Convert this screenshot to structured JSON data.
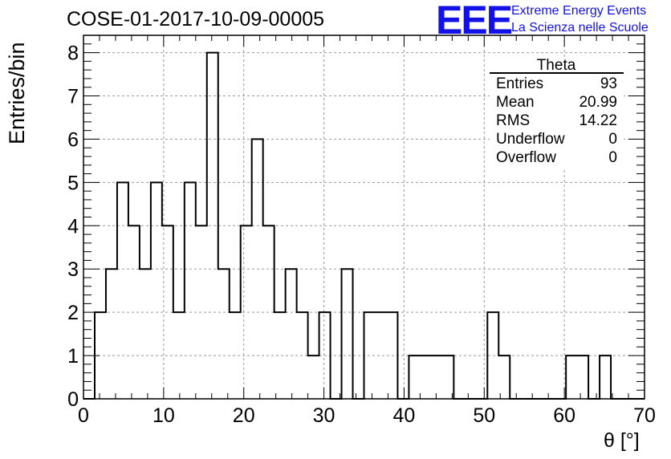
{
  "chart_data": {
    "type": "histogram",
    "title": "COSE-01-2017-10-09-00005",
    "xlabel": "θ [°]",
    "ylabel": "Entries/bin",
    "xlim": [
      0,
      70
    ],
    "ylim": [
      0,
      8.4
    ],
    "x_ticks": [
      0,
      10,
      20,
      30,
      40,
      50,
      60,
      70
    ],
    "y_ticks": [
      0,
      1,
      2,
      3,
      4,
      5,
      6,
      7,
      8
    ],
    "grid": true,
    "bin_width": 1.4,
    "bin_start": 0,
    "bin_counts": [
      0,
      2,
      3,
      5,
      4,
      3,
      5,
      4,
      2,
      5,
      4,
      8,
      3,
      2,
      4,
      6,
      4,
      2,
      3,
      2,
      1,
      2,
      0,
      3,
      0,
      2,
      2,
      2,
      0,
      1,
      1,
      1,
      1,
      0,
      0,
      0,
      2,
      1,
      0,
      0,
      0,
      0,
      0,
      1,
      1,
      0,
      1,
      0,
      0,
      0
    ],
    "color": "#000000"
  },
  "stats_box": {
    "title": "Theta",
    "rows": [
      {
        "label": "Entries",
        "value": "93"
      },
      {
        "label": "Mean",
        "value": "20.99"
      },
      {
        "label": "RMS",
        "value": "14.22"
      },
      {
        "label": "Underflow",
        "value": "0"
      },
      {
        "label": "Overflow",
        "value": "0"
      }
    ]
  },
  "logo": {
    "text": "EEE",
    "line1": "Extreme Energy Events",
    "line2": "La Scienza nelle Scuole",
    "color": "#1212e6"
  }
}
